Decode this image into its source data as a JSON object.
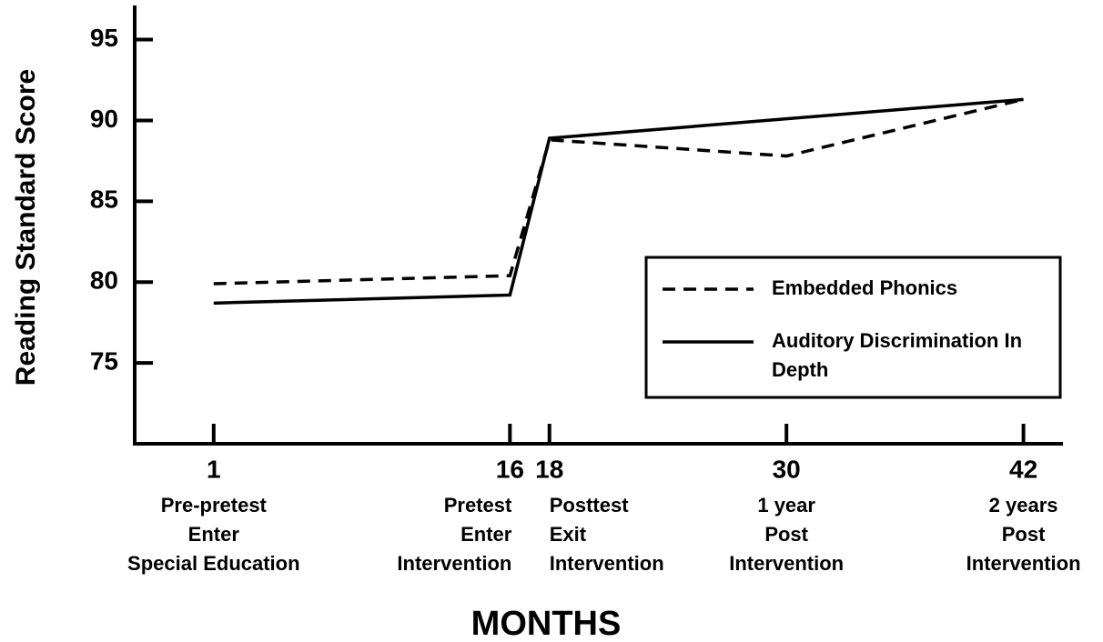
{
  "chart_data": {
    "type": "line",
    "xlabel": "MONTHS",
    "ylabel": "Reading Standard Score",
    "x": [
      1,
      16,
      18,
      30,
      42
    ],
    "x_sublabels": [
      [
        "Pre-pretest",
        "Enter",
        "Special Education"
      ],
      [
        "Pretest",
        "Enter",
        "Intervention"
      ],
      [
        "Posttest",
        "Exit",
        "Intervention"
      ],
      [
        "1 year",
        "Post",
        "Intervention"
      ],
      [
        "2 years",
        "Post",
        "Intervention"
      ]
    ],
    "series": [
      {
        "name": "Embedded Phonics",
        "color": "#000000",
        "dashed": true,
        "values": [
          79.9,
          80.4,
          88.8,
          87.8,
          91.3
        ]
      },
      {
        "name": "Auditory Discrimination In Depth",
        "color": "#000000",
        "dashed": false,
        "values": [
          78.7,
          79.2,
          88.9,
          90.1,
          91.3
        ]
      }
    ],
    "xlim": [
      -3,
      44
    ],
    "xticks": [
      1,
      16,
      18,
      30,
      42
    ],
    "ylim": [
      70,
      97
    ],
    "yticks": [
      75,
      80,
      85,
      90,
      95
    ],
    "grid": false,
    "legend": "right"
  }
}
